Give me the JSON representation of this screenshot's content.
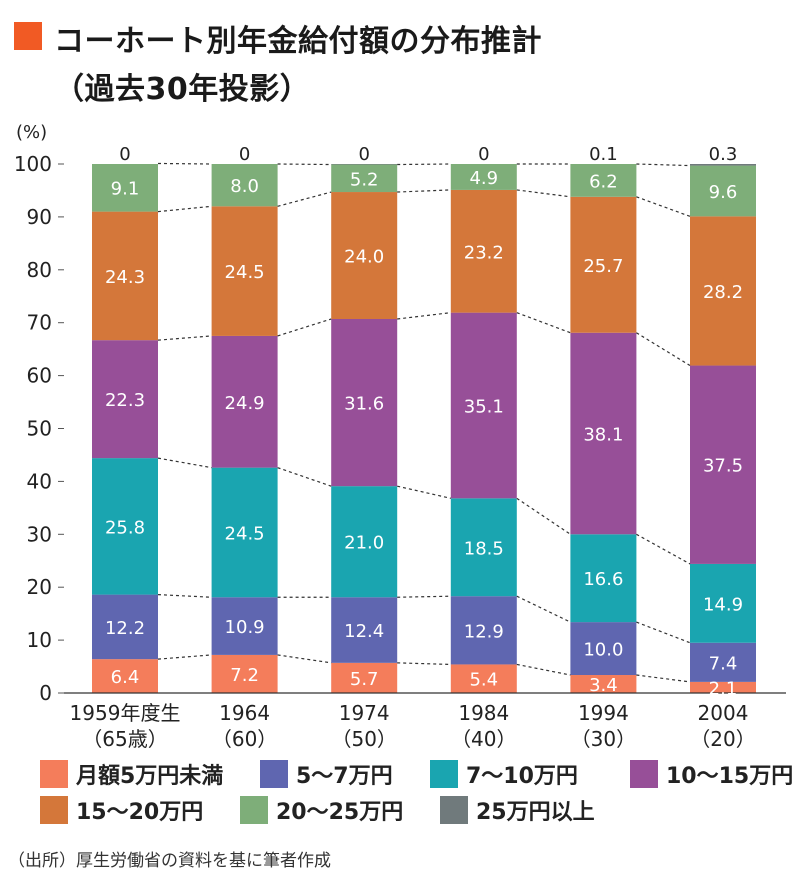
{
  "title": {
    "line1": "コーホート別年金給付額の分布推計",
    "line2": "（過去30年投影）"
  },
  "source": "（出所）厚生労働省の資料を基に筆者作成",
  "chart_data": {
    "type": "bar",
    "stacked": true,
    "ylabel": "(%)",
    "ylim": [
      0,
      100
    ],
    "yticks": [
      "0",
      "10",
      "20",
      "30",
      "40",
      "50",
      "60",
      "70",
      "80",
      "90",
      "100"
    ],
    "categories": [
      {
        "line1": "1959年度生",
        "line2": "（65歳）"
      },
      {
        "line1": "1964",
        "line2": "（60）"
      },
      {
        "line1": "1974",
        "line2": "（50）"
      },
      {
        "line1": "1984",
        "line2": "（40）"
      },
      {
        "line1": "1994",
        "line2": "（30）"
      },
      {
        "line1": "2004",
        "line2": "（20）"
      }
    ],
    "series": [
      {
        "name": "月額5万円未満",
        "color": "#f47d5b",
        "values": [
          6.4,
          7.2,
          5.7,
          5.4,
          3.4,
          2.1
        ],
        "labels": [
          "6.4",
          "7.2",
          "5.7",
          "5.4",
          "3.4",
          "2.1"
        ]
      },
      {
        "name": "5〜7万円",
        "color": "#5f66b0",
        "values": [
          12.2,
          10.9,
          12.4,
          12.9,
          10.0,
          7.4
        ],
        "labels": [
          "12.2",
          "10.9",
          "12.4",
          "12.9",
          "10.0",
          "7.4"
        ]
      },
      {
        "name": "7〜10万円",
        "color": "#1aa5b0",
        "values": [
          25.8,
          24.5,
          21.0,
          18.5,
          16.6,
          14.9
        ],
        "labels": [
          "25.8",
          "24.5",
          "21.0",
          "18.5",
          "16.6",
          "14.9"
        ]
      },
      {
        "name": "10〜15万円",
        "color": "#974f98",
        "values": [
          22.3,
          24.9,
          31.6,
          35.1,
          38.1,
          37.5
        ],
        "labels": [
          "22.3",
          "24.9",
          "31.6",
          "35.1",
          "38.1",
          "37.5"
        ]
      },
      {
        "name": "15〜20万円",
        "color": "#d4773a",
        "values": [
          24.3,
          24.5,
          24.0,
          23.2,
          25.7,
          28.2
        ],
        "labels": [
          "24.3",
          "24.5",
          "24.0",
          "23.2",
          "25.7",
          "28.2"
        ]
      },
      {
        "name": "20〜25万円",
        "color": "#7eae79",
        "values": [
          9.1,
          8.0,
          5.2,
          4.9,
          6.2,
          9.6
        ],
        "labels": [
          "9.1",
          "8.0",
          "5.2",
          "4.9",
          "6.2",
          "9.6"
        ]
      },
      {
        "name": "25万円以上",
        "color": "#707a7c",
        "values": [
          0,
          0,
          0,
          0,
          0.1,
          0.3
        ],
        "labels": [
          "0",
          "0",
          "0",
          "0",
          "0.1",
          "0.3"
        ]
      }
    ],
    "connector_lines": "dashed",
    "legend_position": "bottom",
    "grid": false
  }
}
